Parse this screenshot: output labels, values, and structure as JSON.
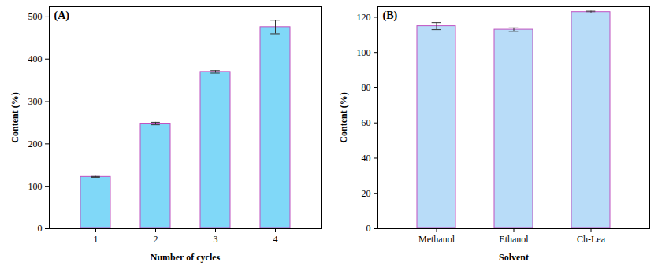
{
  "chart_data": [
    {
      "type": "bar",
      "title": "(A)",
      "x_label": "Number of cycles",
      "y_label": "Content (%)",
      "categories": [
        "1",
        "2",
        "3",
        "4"
      ],
      "values": [
        122,
        248,
        370,
        476
      ],
      "errors": [
        1,
        3,
        3,
        16
      ],
      "color": "#80d8f8",
      "ylim": [
        0,
        524
      ],
      "yticks": [
        0,
        100,
        200,
        300,
        400,
        500
      ]
    },
    {
      "type": "bar",
      "title": "(B)",
      "x_label": "Solvent",
      "y_label": "Content (%)",
      "categories": [
        "Methanol",
        "Ethanol",
        "Ch-Lea"
      ],
      "values": [
        115,
        113,
        123
      ],
      "errors": [
        2,
        1,
        0.5
      ],
      "color": "#b8dcf8",
      "ylim": [
        0,
        126
      ],
      "yticks": [
        0,
        20,
        40,
        60,
        80,
        100,
        120
      ]
    }
  ]
}
